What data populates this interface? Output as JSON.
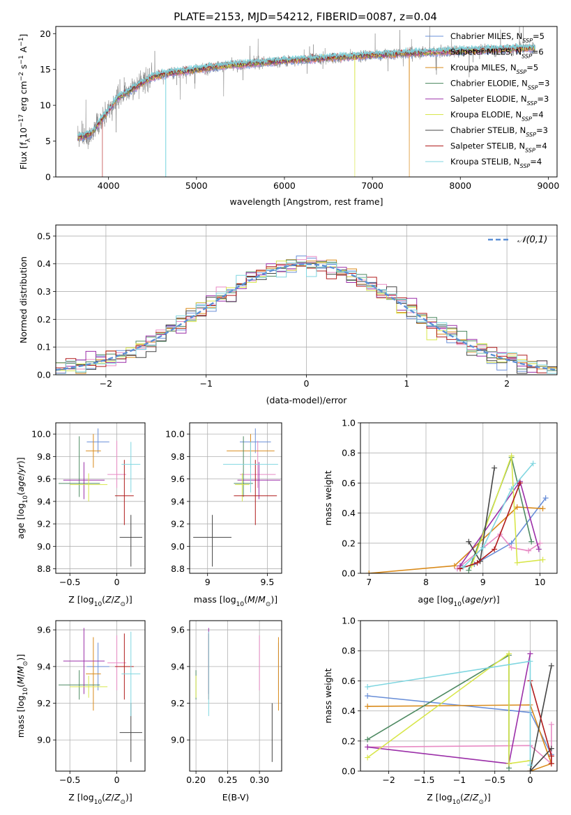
{
  "figure": {
    "title": "PLATE=2153, MJD=54212, FIBERID=0087, z=0.04"
  },
  "colors": {
    "Chabrier MILES": "#6a8fd8",
    "Salpeter MILES": "#e88ac4",
    "Kroupa MILES": "#d98a1a",
    "Chabrier ELODIE": "#4e8a62",
    "Salpeter ELODIE": "#9b2fa8",
    "Kroupa ELODIE": "#d8e64a",
    "Chabrier STELIB": "#444444",
    "Salpeter STELIB": "#b01b1b",
    "Kroupa STELIB": "#7fd6e0",
    "data": "#808080",
    "grid": "#b0b0b0",
    "normal": "#5b8fd6",
    "orange_plot": "#f07f1e"
  },
  "chart_data": [
    {
      "id": "spectrum",
      "type": "line",
      "title": "PLATE=2153, MJD=54212, FIBERID=0087, z=0.04",
      "xlabel": "wavelength [Angstrom, rest frame]",
      "ylabel": "Flux [f_λ 10^-17 erg cm^-2 s^-1 A^-1]",
      "xlim": [
        3400,
        9100
      ],
      "ylim": [
        0,
        21
      ],
      "xticks": [
        4000,
        5000,
        6000,
        7000,
        8000,
        9000
      ],
      "yticks": [
        0,
        5,
        10,
        15,
        20
      ],
      "legend": "right",
      "legend_entries": [
        {
          "name": "Chabrier MILES",
          "nssp": "5"
        },
        {
          "name": "Salpeter MILES",
          "nssp": "6"
        },
        {
          "name": "Kroupa MILES",
          "nssp": "5"
        },
        {
          "name": "Chabrier ELODIE",
          "nssp": "3"
        },
        {
          "name": "Salpeter ELODIE",
          "nssp": "3"
        },
        {
          "name": "Kroupa ELODIE",
          "nssp": "4"
        },
        {
          "name": "Chabrier STELIB",
          "nssp": "3"
        },
        {
          "name": "Salpeter STELIB",
          "nssp": "4"
        },
        {
          "name": "Kroupa STELIB",
          "nssp": "4"
        }
      ],
      "continuum": {
        "x": [
          3650,
          3800,
          3950,
          4100,
          4300,
          4500,
          4700,
          5000,
          5300,
          5600,
          6000,
          6500,
          7000,
          7500,
          8000,
          8500,
          8850
        ],
        "y": [
          5.5,
          6.0,
          8.5,
          11.0,
          12.5,
          14.0,
          14.5,
          15.0,
          15.5,
          15.8,
          16.2,
          16.6,
          17.0,
          17.3,
          17.6,
          17.8,
          18.0
        ]
      },
      "model_range": {
        "x": [
          3650,
          8850
        ]
      },
      "model_drops": [
        {
          "series": "Kroupa STELIB",
          "x": 4650
        },
        {
          "series": "Kroupa ELODIE",
          "x": 6800
        },
        {
          "series": "Kroupa MILES",
          "x": 7420
        },
        {
          "series": "Salpeter STELIB",
          "x": 3930
        }
      ]
    },
    {
      "id": "residuals",
      "type": "histogram",
      "xlabel": "(data-model)/error",
      "ylabel": "Normed distribution",
      "xlim": [
        -2.5,
        2.5
      ],
      "ylim": [
        0,
        0.54
      ],
      "xticks": [
        -2,
        -1,
        0,
        1,
        2
      ],
      "yticks": [
        0.0,
        0.1,
        0.2,
        0.3,
        0.4,
        0.5
      ],
      "legend": "top-right",
      "normal_label": "𝒩(0,1)",
      "bin_width": 0.1
    },
    {
      "id": "age-vs-Z",
      "type": "errorbar",
      "xlabel": "Z [log10(Z/Z⊙)]",
      "ylabel": "age  [log10(age/yr)]",
      "xlim": [
        -0.65,
        0.3
      ],
      "ylim": [
        8.76,
        10.1
      ],
      "xticks": [
        -0.5,
        0.0
      ],
      "yticks": [
        8.8,
        9.0,
        9.2,
        9.4,
        9.6,
        9.8,
        10.0
      ]
    },
    {
      "id": "age-vs-mass",
      "type": "errorbar",
      "xlabel": "mass [log10(M/M⊙)]",
      "ylabel": "",
      "xlim": [
        8.85,
        9.62
      ],
      "ylim": [
        8.76,
        10.1
      ],
      "xticks": [
        9.0,
        9.5
      ],
      "yticks": [
        8.8,
        9.0,
        9.2,
        9.4,
        9.6,
        9.8,
        10.0
      ]
    },
    {
      "id": "massweight-vs-age",
      "type": "line",
      "xlabel": "age  [log10(age/yr)]",
      "ylabel": "mass weight",
      "xlim": [
        6.85,
        10.3
      ],
      "ylim": [
        0,
        1.0
      ],
      "xticks": [
        7,
        8,
        9,
        10
      ],
      "yticks": [
        0.0,
        0.2,
        0.4,
        0.6,
        0.8,
        1.0
      ]
    },
    {
      "id": "mass-vs-Z",
      "type": "errorbar",
      "xlabel": "Z [log10(Z/Z⊙)]",
      "ylabel": "mass [log10(M/M⊙)]",
      "xlim": [
        -0.65,
        0.3
      ],
      "ylim": [
        8.83,
        9.65
      ],
      "xticks": [
        -0.5,
        0.0
      ],
      "yticks": [
        9.0,
        9.2,
        9.4,
        9.6
      ]
    },
    {
      "id": "mass-vs-ebv",
      "type": "errorbar",
      "xlabel": "E(B-V)",
      "ylabel": "",
      "xlim": [
        0.19,
        0.335
      ],
      "ylim": [
        8.83,
        9.65
      ],
      "xticks": [
        0.2,
        0.25,
        0.3
      ],
      "xticklabels": [
        "0.20",
        "0.25",
        "0.30"
      ],
      "yticks": [
        9.0,
        9.2,
        9.4,
        9.6
      ]
    },
    {
      "id": "massweight-vs-Z",
      "type": "line",
      "xlabel": "Z [log10(Z/Z⊙)]",
      "ylabel": "mass weight",
      "xlim": [
        -2.4,
        0.38
      ],
      "ylim": [
        0,
        1.0
      ],
      "xticks": [
        -2.0,
        -1.5,
        -1.0,
        -0.5,
        0.0
      ],
      "yticks": [
        0.0,
        0.2,
        0.4,
        0.6,
        0.8,
        1.0
      ]
    }
  ],
  "fits": [
    {
      "name": "Chabrier MILES",
      "Z": -0.2,
      "Z_err": 0.12,
      "age": 9.93,
      "age_err_lo": 0.1,
      "age_err_hi": 0.12,
      "mass": 9.4,
      "mass_err": 0.13,
      "ebv": 0.33,
      "mw_age": [
        [
          8.55,
          0.03
        ],
        [
          8.85,
          0.06
        ],
        [
          9.5,
          0.2
        ],
        [
          10.1,
          0.5
        ]
      ],
      "mw_Z": [
        [
          -2.3,
          0.5
        ],
        [
          0.0,
          0.39
        ],
        [
          0.3,
          0.11
        ]
      ]
    },
    {
      "name": "Salpeter MILES",
      "Z": 0.0,
      "Z_err": 0.1,
      "age": 9.64,
      "age_err_lo": 0.12,
      "age_err_hi": 0.3,
      "mass": 9.42,
      "mass_err": 0.15,
      "ebv": 0.3,
      "mw_age": [
        [
          8.55,
          0.03
        ],
        [
          9.3,
          0.26
        ],
        [
          9.5,
          0.17
        ],
        [
          9.8,
          0.15
        ],
        [
          10.0,
          0.2
        ]
      ],
      "mw_Z": [
        [
          -2.3,
          0.16
        ],
        [
          0.0,
          0.17
        ],
        [
          0.3,
          0.05
        ],
        [
          0.3,
          0.31
        ]
      ]
    },
    {
      "name": "Kroupa MILES",
      "Z": -0.25,
      "Z_err": 0.08,
      "age": 9.85,
      "age_err_lo": 0.15,
      "age_err_hi": 0.15,
      "mass": 9.36,
      "mass_err": 0.2,
      "ebv": 0.33,
      "mw_age": [
        [
          7.0,
          0.0
        ],
        [
          8.5,
          0.05
        ],
        [
          9.6,
          0.44
        ],
        [
          10.05,
          0.43
        ]
      ],
      "mw_Z": [
        [
          -2.3,
          0.43
        ],
        [
          0.0,
          0.44
        ],
        [
          0.3,
          0.05
        ],
        [
          0.0,
          0.0
        ]
      ]
    },
    {
      "name": "Chabrier ELODIE",
      "Z": -0.4,
      "Z_err": 0.22,
      "age": 9.56,
      "age_err_lo": 0.12,
      "age_err_hi": 0.42,
      "mass": 9.3,
      "mass_err": 0.08,
      "ebv": 0.2,
      "mw_age": [
        [
          8.75,
          0.02
        ],
        [
          9.5,
          0.77
        ],
        [
          9.85,
          0.21
        ]
      ],
      "mw_Z": [
        [
          -2.3,
          0.21
        ],
        [
          -0.3,
          0.77
        ],
        [
          -0.3,
          0.02
        ]
      ]
    },
    {
      "name": "Salpeter ELODIE",
      "Z": -0.35,
      "Z_err": 0.22,
      "age": 9.59,
      "age_err_lo": 0.17,
      "age_err_hi": 0.16,
      "mass": 9.43,
      "mass_err": 0.18,
      "ebv": 0.22,
      "mw_age": [
        [
          8.6,
          0.05
        ],
        [
          9.65,
          0.61
        ],
        [
          9.98,
          0.16
        ]
      ],
      "mw_Z": [
        [
          -2.3,
          0.16
        ],
        [
          -0.3,
          0.05
        ],
        [
          0.0,
          0.78
        ]
      ]
    },
    {
      "name": "Kroupa ELODIE",
      "Z": -0.3,
      "Z_err": 0.2,
      "age": 9.55,
      "age_err_lo": 0.15,
      "age_err_hi": 0.1,
      "mass": 9.29,
      "mass_err": 0.06,
      "ebv": 0.2,
      "mw_age": [
        [
          8.8,
          0.05
        ],
        [
          9.5,
          0.78
        ],
        [
          9.6,
          0.07
        ],
        [
          10.05,
          0.09
        ]
      ],
      "mw_Z": [
        [
          -2.3,
          0.09
        ],
        [
          -0.3,
          0.78
        ],
        [
          -0.3,
          0.05
        ],
        [
          0.0,
          0.07
        ]
      ]
    },
    {
      "name": "Chabrier STELIB",
      "Z": 0.15,
      "Z_err": 0.12,
      "age": 9.08,
      "age_err_lo": 0.26,
      "age_err_hi": 0.2,
      "mass": 9.04,
      "mass_err": 0.16,
      "ebv": 0.32,
      "mw_age": [
        [
          8.75,
          0.21
        ],
        [
          8.95,
          0.08
        ],
        [
          9.2,
          0.7
        ]
      ],
      "mw_Z": [
        [
          0.3,
          0.15
        ],
        [
          0.0,
          0.0
        ],
        [
          0.3,
          0.7
        ]
      ]
    },
    {
      "name": "Salpeter STELIB",
      "Z": 0.08,
      "Z_err": 0.1,
      "age": 9.45,
      "age_err_lo": 0.26,
      "age_err_hi": 0.32,
      "mass": 9.4,
      "mass_err": 0.18,
      "ebv": 0.22,
      "mw_age": [
        [
          8.6,
          0.03
        ],
        [
          8.9,
          0.07
        ],
        [
          9.2,
          0.16
        ],
        [
          9.65,
          0.6
        ]
      ],
      "mw_Z": [
        [
          0.0,
          0.6
        ],
        [
          0.3,
          0.1
        ],
        [
          0.3,
          0.05
        ]
      ]
    },
    {
      "name": "Kroupa STELIB",
      "Z": 0.15,
      "Z_err": 0.1,
      "age": 9.73,
      "age_err_lo": 0.25,
      "age_err_hi": 0.2,
      "mass": 9.36,
      "mass_err": 0.23,
      "ebv": 0.22,
      "mw_age": [
        [
          8.65,
          0.04
        ],
        [
          9.0,
          0.17
        ],
        [
          9.5,
          0.56
        ],
        [
          9.88,
          0.73
        ]
      ],
      "mw_Z": [
        [
          -2.3,
          0.56
        ],
        [
          0.0,
          0.73
        ],
        [
          0.0,
          0.04
        ]
      ]
    }
  ]
}
